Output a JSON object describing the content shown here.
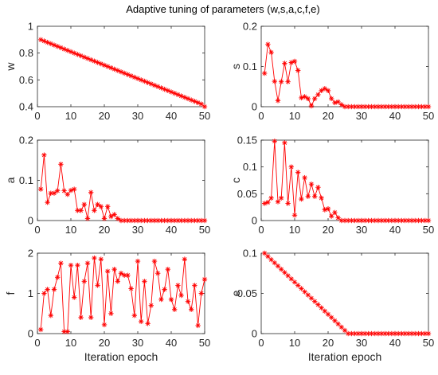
{
  "figure": {
    "title": "Adaptive tuning of parameters (w,s,a,c,f,e)"
  },
  "chart_data": [
    {
      "type": "line",
      "ylabel": "w",
      "xlabel": "",
      "xlim": [
        0,
        50
      ],
      "ylim": [
        0.4,
        1
      ],
      "xticks": [
        0,
        10,
        20,
        30,
        40,
        50
      ],
      "yticks": [
        0.4,
        0.6,
        0.8,
        1
      ],
      "ytick_labels": [
        "0.4",
        "0.6",
        "0.8",
        "1"
      ],
      "marker": "asterisk",
      "color": "#ff0000",
      "x": [
        1,
        2,
        3,
        4,
        5,
        6,
        7,
        8,
        9,
        10,
        11,
        12,
        13,
        14,
        15,
        16,
        17,
        18,
        19,
        20,
        21,
        22,
        23,
        24,
        25,
        26,
        27,
        28,
        29,
        30,
        31,
        32,
        33,
        34,
        35,
        36,
        37,
        38,
        39,
        40,
        41,
        42,
        43,
        44,
        45,
        46,
        47,
        48,
        49,
        50
      ],
      "y": [
        0.9,
        0.89,
        0.88,
        0.87,
        0.86,
        0.85,
        0.84,
        0.83,
        0.82,
        0.81,
        0.8,
        0.79,
        0.78,
        0.77,
        0.76,
        0.75,
        0.74,
        0.73,
        0.72,
        0.71,
        0.7,
        0.69,
        0.68,
        0.67,
        0.66,
        0.65,
        0.64,
        0.63,
        0.62,
        0.61,
        0.6,
        0.59,
        0.58,
        0.57,
        0.56,
        0.55,
        0.54,
        0.53,
        0.52,
        0.51,
        0.5,
        0.49,
        0.48,
        0.47,
        0.46,
        0.45,
        0.44,
        0.43,
        0.42,
        0.4
      ]
    },
    {
      "type": "line",
      "ylabel": "s",
      "xlabel": "",
      "xlim": [
        0,
        50
      ],
      "ylim": [
        0,
        0.2
      ],
      "xticks": [
        0,
        10,
        20,
        30,
        40,
        50
      ],
      "yticks": [
        0,
        0.1,
        0.2
      ],
      "ytick_labels": [
        "0",
        "0.1",
        "0.2"
      ],
      "marker": "asterisk",
      "color": "#ff0000",
      "x": [
        1,
        2,
        3,
        4,
        5,
        6,
        7,
        8,
        9,
        10,
        11,
        12,
        13,
        14,
        15,
        16,
        17,
        18,
        19,
        20,
        21,
        22,
        23,
        24,
        25,
        26,
        27,
        28,
        29,
        30,
        31,
        32,
        33,
        34,
        35,
        36,
        37,
        38,
        39,
        40,
        41,
        42,
        43,
        44,
        45,
        46,
        47,
        48,
        49,
        50
      ],
      "y": [
        0.083,
        0.155,
        0.135,
        0.063,
        0.015,
        0.062,
        0.108,
        0.062,
        0.11,
        0.113,
        0.09,
        0.022,
        0.025,
        0.02,
        0.002,
        0.02,
        0.03,
        0.04,
        0.045,
        0.04,
        0.02,
        0.01,
        0.012,
        0.005,
        0,
        0,
        0,
        0,
        0,
        0,
        0,
        0,
        0,
        0,
        0,
        0,
        0,
        0,
        0,
        0,
        0,
        0,
        0,
        0,
        0,
        0,
        0,
        0,
        0,
        0
      ]
    },
    {
      "type": "line",
      "ylabel": "a",
      "xlabel": "",
      "xlim": [
        0,
        50
      ],
      "ylim": [
        0,
        0.2
      ],
      "xticks": [
        0,
        10,
        20,
        30,
        40,
        50
      ],
      "yticks": [
        0,
        0.1,
        0.2
      ],
      "ytick_labels": [
        "0",
        "0.1",
        "0.2"
      ],
      "marker": "asterisk",
      "color": "#ff0000",
      "x": [
        1,
        2,
        3,
        4,
        5,
        6,
        7,
        8,
        9,
        10,
        11,
        12,
        13,
        14,
        15,
        16,
        17,
        18,
        19,
        20,
        21,
        22,
        23,
        24,
        25,
        26,
        27,
        28,
        29,
        30,
        31,
        32,
        33,
        34,
        35,
        36,
        37,
        38,
        39,
        40,
        41,
        42,
        43,
        44,
        45,
        46,
        47,
        48,
        49,
        50
      ],
      "y": [
        0.078,
        0.163,
        0.045,
        0.068,
        0.068,
        0.074,
        0.14,
        0.074,
        0.065,
        0.075,
        0.078,
        0.025,
        0.025,
        0.04,
        0.005,
        0.07,
        0.025,
        0.04,
        0.035,
        0.005,
        0.035,
        0.01,
        0.015,
        0.005,
        0,
        0,
        0,
        0,
        0,
        0,
        0,
        0,
        0,
        0,
        0,
        0,
        0,
        0,
        0,
        0,
        0,
        0,
        0,
        0,
        0,
        0,
        0,
        0,
        0,
        0
      ]
    },
    {
      "type": "line",
      "ylabel": "c",
      "xlabel": "",
      "xlim": [
        0,
        50
      ],
      "ylim": [
        0,
        0.15
      ],
      "xticks": [
        0,
        10,
        20,
        30,
        40,
        50
      ],
      "yticks": [
        0,
        0.05,
        0.1,
        0.15
      ],
      "ytick_labels": [
        "0",
        "0.05",
        "0.1",
        "0.15"
      ],
      "marker": "asterisk",
      "color": "#ff0000",
      "x": [
        1,
        2,
        3,
        4,
        5,
        6,
        7,
        8,
        9,
        10,
        11,
        12,
        13,
        14,
        15,
        16,
        17,
        18,
        19,
        20,
        21,
        22,
        23,
        24,
        25,
        26,
        27,
        28,
        29,
        30,
        31,
        32,
        33,
        34,
        35,
        36,
        37,
        38,
        39,
        40,
        41,
        42,
        43,
        44,
        45,
        46,
        47,
        48,
        49,
        50
      ],
      "y": [
        0.032,
        0.034,
        0.042,
        0.148,
        0.035,
        0.042,
        0.145,
        0.032,
        0.1,
        0.01,
        0.09,
        0.04,
        0.08,
        0.045,
        0.068,
        0.045,
        0.062,
        0.042,
        0.02,
        0.022,
        0.008,
        0.015,
        0.005,
        0,
        0,
        0,
        0,
        0,
        0,
        0,
        0,
        0,
        0,
        0,
        0,
        0,
        0,
        0,
        0,
        0,
        0,
        0,
        0,
        0,
        0,
        0,
        0,
        0,
        0,
        0
      ]
    },
    {
      "type": "line",
      "ylabel": "f",
      "xlabel": "Iteration epoch",
      "xlim": [
        0,
        50
      ],
      "ylim": [
        0,
        2
      ],
      "xticks": [
        0,
        10,
        20,
        30,
        40,
        50
      ],
      "yticks": [
        0,
        1,
        2
      ],
      "ytick_labels": [
        "0",
        "1",
        "2"
      ],
      "marker": "asterisk",
      "color": "#ff0000",
      "x": [
        1,
        2,
        3,
        4,
        5,
        6,
        7,
        8,
        9,
        10,
        11,
        12,
        13,
        14,
        15,
        16,
        17,
        18,
        19,
        20,
        21,
        22,
        23,
        24,
        25,
        26,
        27,
        28,
        29,
        30,
        31,
        32,
        33,
        34,
        35,
        36,
        37,
        38,
        39,
        40,
        41,
        42,
        43,
        44,
        45,
        46,
        47,
        48,
        49,
        50
      ],
      "y": [
        0.1,
        1.0,
        1.1,
        0.45,
        1.1,
        1.4,
        1.75,
        0.05,
        0.05,
        1.7,
        0.9,
        1.7,
        0.4,
        1.3,
        1.75,
        0.4,
        1.88,
        1.2,
        1.85,
        0.22,
        1.55,
        0.5,
        1.6,
        1.3,
        1.5,
        1.45,
        1.45,
        1.12,
        0.45,
        1.8,
        0.3,
        1.3,
        0.25,
        0.7,
        1.8,
        1.5,
        0.85,
        1.1,
        1.6,
        0.85,
        0.6,
        1.2,
        0.95,
        1.85,
        0.8,
        0.6,
        1.2,
        0.2,
        1.0,
        1.35
      ]
    },
    {
      "type": "line",
      "ylabel": "e",
      "xlabel": "Iteration epoch",
      "xlim": [
        0,
        50
      ],
      "ylim": [
        0,
        0.1
      ],
      "xticks": [
        0,
        10,
        20,
        30,
        40,
        50
      ],
      "yticks": [
        0,
        0.05,
        0.1
      ],
      "ytick_labels": [
        "0",
        "0.05",
        "0.1"
      ],
      "marker": "asterisk",
      "color": "#ff0000",
      "x": [
        1,
        2,
        3,
        4,
        5,
        6,
        7,
        8,
        9,
        10,
        11,
        12,
        13,
        14,
        15,
        16,
        17,
        18,
        19,
        20,
        21,
        22,
        23,
        24,
        25,
        26,
        27,
        28,
        29,
        30,
        31,
        32,
        33,
        34,
        35,
        36,
        37,
        38,
        39,
        40,
        41,
        42,
        43,
        44,
        45,
        46,
        47,
        48,
        49,
        50
      ],
      "y": [
        0.1,
        0.096,
        0.092,
        0.088,
        0.084,
        0.08,
        0.076,
        0.072,
        0.068,
        0.064,
        0.06,
        0.056,
        0.052,
        0.048,
        0.044,
        0.04,
        0.036,
        0.032,
        0.028,
        0.024,
        0.02,
        0.016,
        0.012,
        0.008,
        0.004,
        0,
        0,
        0,
        0,
        0,
        0,
        0,
        0,
        0,
        0,
        0,
        0,
        0,
        0,
        0,
        0,
        0,
        0,
        0,
        0,
        0,
        0,
        0,
        0,
        0
      ]
    }
  ]
}
